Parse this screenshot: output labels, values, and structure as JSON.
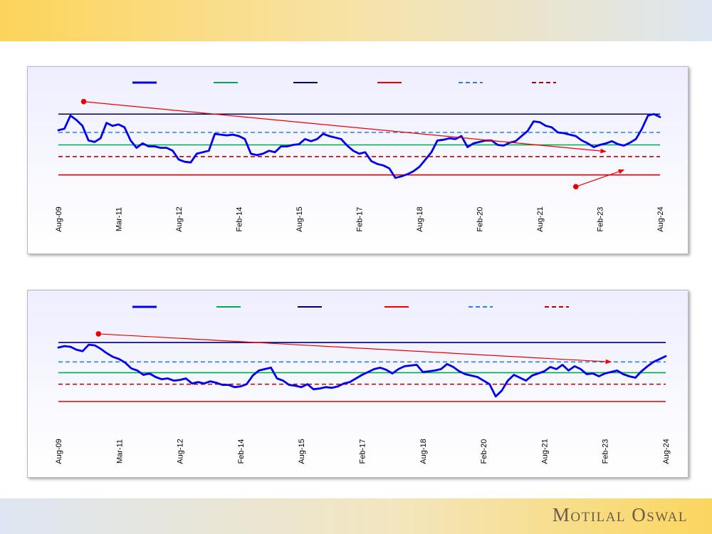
{
  "brand": "Motilal Oswal",
  "chart_data": [
    {
      "type": "line",
      "title": "",
      "x_ticks": [
        "Aug-09",
        "Mar-11",
        "Aug-12",
        "Feb-14",
        "Aug-15",
        "Feb-17",
        "Aug-18",
        "Feb-20",
        "Aug-21",
        "Feb-23",
        "Aug-24"
      ],
      "legend": [
        {
          "label": "",
          "color": "#0000ee",
          "style": "solid-thick"
        },
        {
          "label": "",
          "color": "#00a84f",
          "style": "solid"
        },
        {
          "label": "",
          "color": "#00006a",
          "style": "solid"
        },
        {
          "label": "",
          "color": "#ee0000",
          "style": "solid"
        },
        {
          "label": "",
          "color": "#2f7fe0",
          "style": "dashed"
        },
        {
          "label": "",
          "color": "#c00000",
          "style": "dashed"
        }
      ],
      "ylim": [
        0,
        100
      ],
      "reference_lines": [
        {
          "value": 92,
          "color": "#00006a",
          "dash": false
        },
        {
          "value": 67,
          "color": "#2f7fe0",
          "dash": true
        },
        {
          "value": 50,
          "color": "#00a84f",
          "dash": false
        },
        {
          "value": 34,
          "color": "#c00000",
          "dash": true
        },
        {
          "value": 9,
          "color": "#ee0000",
          "dash": false
        }
      ],
      "arrows": [
        {
          "from": [
            2.1,
            109
          ],
          "to": [
            45.5,
            41
          ],
          "color": "#ee0000"
        },
        {
          "from": [
            43,
            -7
          ],
          "to": [
            47,
            16
          ],
          "color": "#ee0000"
        }
      ],
      "series": [
        {
          "name": "",
          "color": "#0000ee",
          "x": [
            0,
            0.5,
            1,
            1.5,
            2,
            2.5,
            3,
            3.5,
            4,
            4.5,
            5,
            5.5,
            6,
            6.5,
            7,
            7.5,
            8,
            8.5,
            9,
            9.5,
            10,
            10.5,
            11,
            11.5,
            12,
            12.5,
            13,
            13.5,
            14,
            14.5,
            15,
            15.5,
            16,
            16.5,
            17,
            17.5,
            18,
            18.5,
            19,
            19.5,
            20,
            20.5,
            21,
            21.5,
            22,
            22.5,
            23,
            23.5,
            24,
            24.5,
            25,
            25.5,
            26,
            26.5,
            27,
            27.5,
            28,
            28.5,
            29,
            29.5,
            30,
            30.5,
            31,
            31.5,
            32,
            32.5,
            33,
            33.5,
            34,
            34.5,
            35,
            35.5,
            36,
            36.5,
            37,
            37.5,
            38,
            38.5,
            39,
            39.5,
            40,
            40.5,
            41,
            41.5,
            42,
            42.5,
            43,
            43.5,
            44,
            44.5,
            45,
            45.5,
            46,
            46.5,
            47,
            47.5,
            48,
            48.5,
            49,
            49.5,
            50
          ],
          "y": [
            70,
            72,
            90,
            84,
            76,
            56,
            54,
            59,
            80,
            76,
            78,
            74,
            56,
            46,
            52,
            48,
            48,
            46,
            46,
            42,
            30,
            27,
            26,
            38,
            40,
            42,
            65,
            64,
            63,
            64,
            62,
            58,
            38,
            36,
            38,
            42,
            40,
            48,
            48,
            50,
            51,
            58,
            55,
            58,
            65,
            62,
            60,
            58,
            49,
            42,
            38,
            40,
            28,
            24,
            22,
            18,
            5,
            7,
            10,
            14,
            20,
            30,
            40,
            56,
            57,
            59,
            58,
            62,
            47,
            52,
            54,
            56,
            56,
            50,
            49,
            53,
            55,
            62,
            69,
            82,
            81,
            76,
            74,
            67,
            66,
            64,
            62,
            56,
            52,
            47,
            50,
            52,
            55,
            51,
            49,
            53,
            58,
            72,
            90,
            92,
            88
          ]
        }
      ]
    },
    {
      "type": "line",
      "title": "",
      "x_ticks": [
        "Aug-09",
        "Mar-11",
        "Aug-12",
        "Feb-14",
        "Aug-15",
        "Feb-17",
        "Aug-18",
        "Feb-20",
        "Aug-21",
        "Feb-23",
        "Aug-24"
      ],
      "legend": [
        {
          "label": "",
          "color": "#0000ee",
          "style": "solid-thick"
        },
        {
          "label": "",
          "color": "#00a84f",
          "style": "solid"
        },
        {
          "label": "",
          "color": "#00006a",
          "style": "solid"
        },
        {
          "label": "",
          "color": "#ee0000",
          "style": "solid"
        },
        {
          "label": "",
          "color": "#2f7fe0",
          "style": "dashed"
        },
        {
          "label": "",
          "color": "#c00000",
          "style": "dashed"
        }
      ],
      "ylim": [
        0,
        100
      ],
      "reference_lines": [
        {
          "value": 95,
          "color": "#00006a",
          "dash": false
        },
        {
          "value": 68,
          "color": "#2f7fe0",
          "dash": true
        },
        {
          "value": 53,
          "color": "#00a84f",
          "dash": false
        },
        {
          "value": 37,
          "color": "#c00000",
          "dash": true
        },
        {
          "value": 13,
          "color": "#ee0000",
          "dash": false
        }
      ],
      "arrows": [
        {
          "from": [
            3.3,
            107
          ],
          "to": [
            45.5,
            68
          ],
          "color": "#ee0000"
        }
      ],
      "series": [
        {
          "name": "",
          "color": "#0000ee",
          "x": [
            0,
            0.5,
            1,
            1.5,
            2,
            2.5,
            3,
            3.5,
            4,
            4.5,
            5,
            5.5,
            6,
            6.5,
            7,
            7.5,
            8,
            8.5,
            9,
            9.5,
            10,
            10.5,
            11,
            11.5,
            12,
            12.5,
            13,
            13.5,
            14,
            14.5,
            15,
            15.5,
            16,
            16.5,
            17,
            17.5,
            18,
            18.5,
            19,
            19.5,
            20,
            20.5,
            21,
            21.5,
            22,
            22.5,
            23,
            23.5,
            24,
            24.5,
            25,
            25.5,
            26,
            26.5,
            27,
            27.5,
            28,
            28.5,
            29,
            29.5,
            30,
            30.5,
            31,
            31.5,
            32,
            32.5,
            33,
            33.5,
            34,
            34.5,
            35,
            35.5,
            36,
            36.5,
            37,
            37.5,
            38,
            38.5,
            39,
            39.5,
            40,
            40.5,
            41,
            41.5,
            42,
            42.5,
            43,
            43.5,
            44,
            44.5,
            45,
            45.5,
            46,
            46.5,
            47,
            47.5,
            48,
            48.5,
            49,
            49.5,
            50
          ],
          "y": [
            88,
            90,
            89,
            85,
            83,
            92,
            91,
            86,
            80,
            75,
            72,
            67,
            59,
            56,
            50,
            52,
            47,
            44,
            45,
            42,
            43,
            45,
            38,
            40,
            38,
            41,
            39,
            36,
            36,
            33,
            34,
            37,
            49,
            56,
            58,
            60,
            45,
            42,
            36,
            35,
            33,
            37,
            30,
            31,
            33,
            32,
            34,
            38,
            40,
            45,
            50,
            54,
            58,
            60,
            57,
            52,
            58,
            62,
            63,
            64,
            54,
            55,
            56,
            58,
            65,
            61,
            55,
            51,
            49,
            47,
            42,
            37,
            20,
            28,
            42,
            50,
            46,
            42,
            49,
            52,
            55,
            61,
            58,
            64,
            56,
            62,
            58,
            51,
            52,
            48,
            52,
            54,
            56,
            51,
            48,
            46,
            55,
            62,
            68,
            72,
            76
          ]
        }
      ]
    }
  ]
}
